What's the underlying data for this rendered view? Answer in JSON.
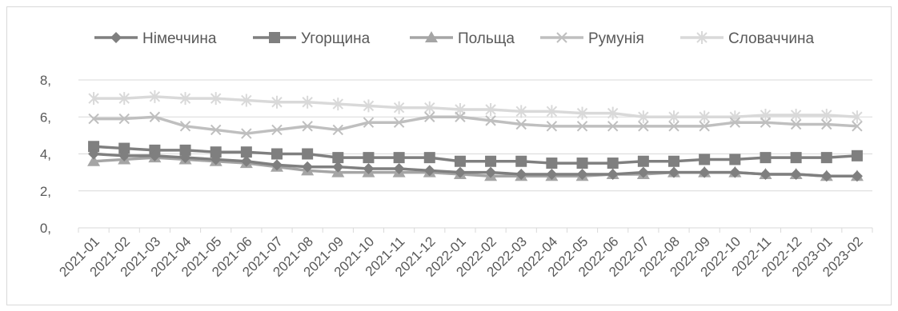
{
  "chart_data": {
    "type": "line",
    "title": "",
    "xlabel": "",
    "ylabel": "",
    "ylim": [
      0,
      8
    ],
    "y_ticks": [
      "0,",
      "2,",
      "4,",
      "6,",
      "8,"
    ],
    "grid": "horizontal",
    "legend_position": "top",
    "categories": [
      "2021-01",
      "2021-02",
      "2021-03",
      "2021-04",
      "2021-05",
      "2021-06",
      "2021-07",
      "2021-08",
      "2021-09",
      "2021-10",
      "2021-11",
      "2021-12",
      "2022-01",
      "2022-02",
      "2022-03",
      "2022-04",
      "2022-05",
      "2022-06",
      "2022-07",
      "2022-08",
      "2022-09",
      "2022-10",
      "2022-11",
      "2022-12",
      "2023-01",
      "2023-02"
    ],
    "series": [
      {
        "name": "Німеччина",
        "color": "#7f7f7f",
        "marker": "diamond",
        "values": [
          4.0,
          3.9,
          3.9,
          3.8,
          3.7,
          3.6,
          3.4,
          3.3,
          3.3,
          3.2,
          3.2,
          3.1,
          3.0,
          3.0,
          2.9,
          2.9,
          2.9,
          2.9,
          3.0,
          3.0,
          3.0,
          3.0,
          2.9,
          2.9,
          2.8,
          2.8
        ]
      },
      {
        "name": "Угорщина",
        "color": "#7f7f7f",
        "marker": "square",
        "values": [
          4.4,
          4.3,
          4.2,
          4.2,
          4.1,
          4.1,
          4.0,
          4.0,
          3.8,
          3.8,
          3.8,
          3.8,
          3.6,
          3.6,
          3.6,
          3.5,
          3.5,
          3.5,
          3.6,
          3.6,
          3.7,
          3.7,
          3.8,
          3.8,
          3.8,
          3.9
        ]
      },
      {
        "name": "Польща",
        "color": "#a5a5a5",
        "marker": "triangle",
        "values": [
          3.6,
          3.7,
          3.8,
          3.7,
          3.6,
          3.5,
          3.3,
          3.1,
          3.0,
          3.0,
          3.0,
          3.0,
          2.9,
          2.8,
          2.8,
          2.8,
          2.8,
          2.9,
          2.9,
          3.0,
          3.0,
          3.0,
          2.9,
          2.9,
          2.8,
          2.8
        ]
      },
      {
        "name": "Румунія",
        "color": "#bfbfbf",
        "marker": "x",
        "values": [
          5.9,
          5.9,
          6.0,
          5.5,
          5.3,
          5.1,
          5.3,
          5.5,
          5.3,
          5.7,
          5.7,
          6.0,
          6.0,
          5.8,
          5.6,
          5.5,
          5.5,
          5.5,
          5.5,
          5.5,
          5.5,
          5.7,
          5.7,
          5.6,
          5.6,
          5.5
        ]
      },
      {
        "name": "Словаччина",
        "color": "#d9d9d9",
        "marker": "star",
        "values": [
          7.0,
          7.0,
          7.1,
          7.0,
          7.0,
          6.9,
          6.8,
          6.8,
          6.7,
          6.6,
          6.5,
          6.5,
          6.4,
          6.4,
          6.3,
          6.3,
          6.2,
          6.2,
          6.0,
          6.0,
          6.0,
          6.0,
          6.1,
          6.1,
          6.1,
          6.0
        ]
      }
    ]
  }
}
